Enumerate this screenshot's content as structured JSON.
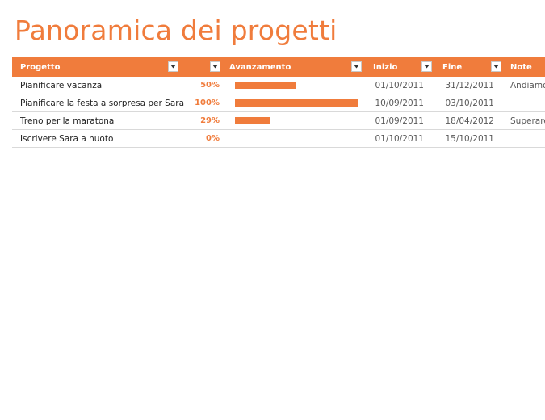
{
  "title": "Panoramica dei progetti",
  "colors": {
    "accent": "#f07c3c",
    "row_border": "#d9d9d9"
  },
  "header": {
    "project": "Progetto",
    "progress": "Avanzamento",
    "start": "Inizio",
    "end": "Fine",
    "notes": "Note",
    "filter_icon": "filter-dropdown-icon"
  },
  "rows": [
    {
      "name": "Pianificare vacanza",
      "percent_label": "50%",
      "progress": 0.5,
      "start": "01/10/2011",
      "end": "31/12/2011",
      "note": "Andiamo"
    },
    {
      "name": "Pianificare la festa a sorpresa per Sara",
      "percent_label": "100%",
      "progress": 1.0,
      "start": "10/09/2011",
      "end": "03/10/2011",
      "note": ""
    },
    {
      "name": "Treno per la maratona",
      "percent_label": "29%",
      "progress": 0.29,
      "start": "01/09/2011",
      "end": "18/04/2012",
      "note": "Superare"
    },
    {
      "name": "Iscrivere Sara a nuoto",
      "percent_label": "0%",
      "progress": 0.0,
      "start": "01/10/2011",
      "end": "15/10/2011",
      "note": ""
    }
  ]
}
